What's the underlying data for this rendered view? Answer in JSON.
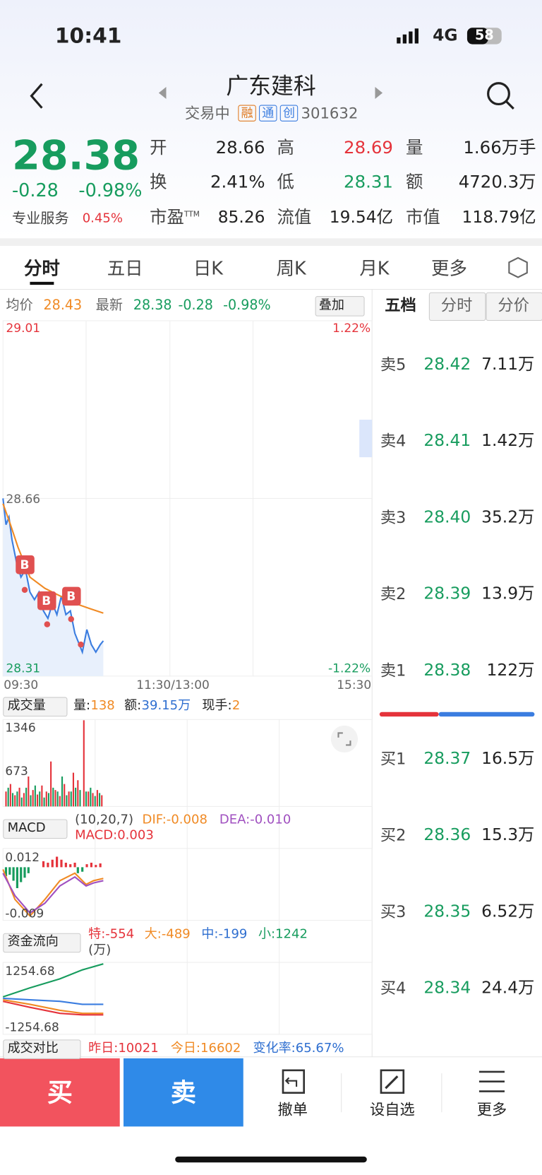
{
  "status": {
    "time": "10:41",
    "network": "4G",
    "battery": "58"
  },
  "header": {
    "title": "广东建科",
    "state": "交易中",
    "badges": [
      "融",
      "通",
      "创"
    ],
    "code": "301632"
  },
  "quote": {
    "price": "28.38",
    "change": "-0.28",
    "pct": "-0.98%",
    "service": "专业服务",
    "service_pct": "0.45%",
    "stats": [
      {
        "label": "开",
        "value": "28.66"
      },
      {
        "label": "高",
        "value": "28.69"
      },
      {
        "label": "量",
        "value": "1.66万手"
      },
      {
        "label": "换",
        "value": "2.41%"
      },
      {
        "label": "低",
        "value": "28.31"
      },
      {
        "label": "额",
        "value": "4720.3万"
      },
      {
        "label": "市盈",
        "sup": "TTM",
        "value": "85.26"
      },
      {
        "label": "流值",
        "value": "19.54亿"
      },
      {
        "label": "市值",
        "value": "118.79亿"
      }
    ]
  },
  "tabs": [
    "分时",
    "五日",
    "日K",
    "周K",
    "月K",
    "更多"
  ],
  "chart": {
    "avg_label": "均价",
    "avg": "28.43",
    "latest_label": "最新",
    "latest": "28.38",
    "change": "-0.28",
    "pct": "-0.98%",
    "overlay": "叠加",
    "top": "29.01",
    "top_pct": "1.22%",
    "mid": "28.66",
    "bottom": "28.31",
    "bottom_pct": "-1.22%",
    "times": [
      "09:30",
      "11:30/13:00",
      "15:30"
    ],
    "markers": [
      "B",
      "B",
      "B"
    ]
  },
  "volume": {
    "selector": "成交量",
    "items": [
      {
        "label": "量:",
        "value": "138"
      },
      {
        "label": "额:",
        "value": "39.15万"
      },
      {
        "label": "现手:",
        "value": "2"
      }
    ],
    "ticks": [
      "1346",
      "673"
    ]
  },
  "macd": {
    "selector": "MACD",
    "params": "(10,20,7)",
    "dif": "DIF:-0.008",
    "dea": "DEA:-0.010",
    "macd": "MACD:0.003",
    "ticks": [
      "0.012",
      "-0.009"
    ]
  },
  "flow": {
    "selector": "资金流向",
    "items": [
      "特:-554",
      "大:-489",
      "中:-199",
      "小:1242"
    ],
    "unit": "(万)",
    "ticks": [
      "1254.68",
      "-1254.68"
    ]
  },
  "compare": {
    "selector": "成交对比",
    "items": [
      "昨日:10021",
      "今日:16602",
      "变化率:65.67%"
    ]
  },
  "book": {
    "tabs": [
      "五档",
      "分时",
      "分价"
    ],
    "sells": [
      {
        "label": "卖5",
        "price": "28.42",
        "volume": "7.11万"
      },
      {
        "label": "卖4",
        "price": "28.41",
        "volume": "1.42万"
      },
      {
        "label": "卖3",
        "price": "28.40",
        "volume": "35.2万"
      },
      {
        "label": "卖2",
        "price": "28.39",
        "volume": "13.9万"
      },
      {
        "label": "卖1",
        "price": "28.38",
        "volume": "122万"
      }
    ],
    "buys": [
      {
        "label": "买1",
        "price": "28.37",
        "volume": "16.5万"
      },
      {
        "label": "买2",
        "price": "28.36",
        "volume": "15.3万"
      },
      {
        "label": "买3",
        "price": "28.35",
        "volume": "6.52万"
      },
      {
        "label": "买4",
        "price": "28.34",
        "volume": "24.4万"
      }
    ]
  },
  "bottom": {
    "buy": "买",
    "sell": "卖",
    "actions": [
      "撤单",
      "设自选",
      "更多"
    ]
  }
}
